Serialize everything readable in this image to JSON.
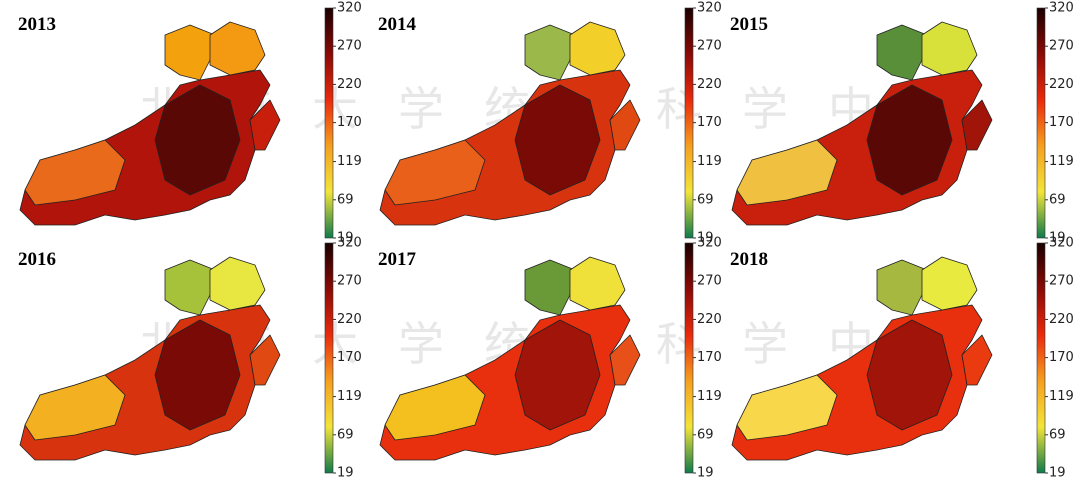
{
  "panels": [
    {
      "year": "2013"
    },
    {
      "year": "2014"
    },
    {
      "year": "2015"
    },
    {
      "year": "2016"
    },
    {
      "year": "2017"
    },
    {
      "year": "2018"
    }
  ],
  "colorbar": {
    "lim": [
      19,
      320
    ],
    "ticks": [
      19,
      69,
      119,
      170,
      220,
      270,
      320
    ],
    "colors": [
      "#0f7a4a",
      "#f3e43a",
      "#f5a020",
      "#ea2a0c",
      "#8a0a06",
      "#1a0000"
    ]
  },
  "watermark": "北京大学统计科学中心"
}
